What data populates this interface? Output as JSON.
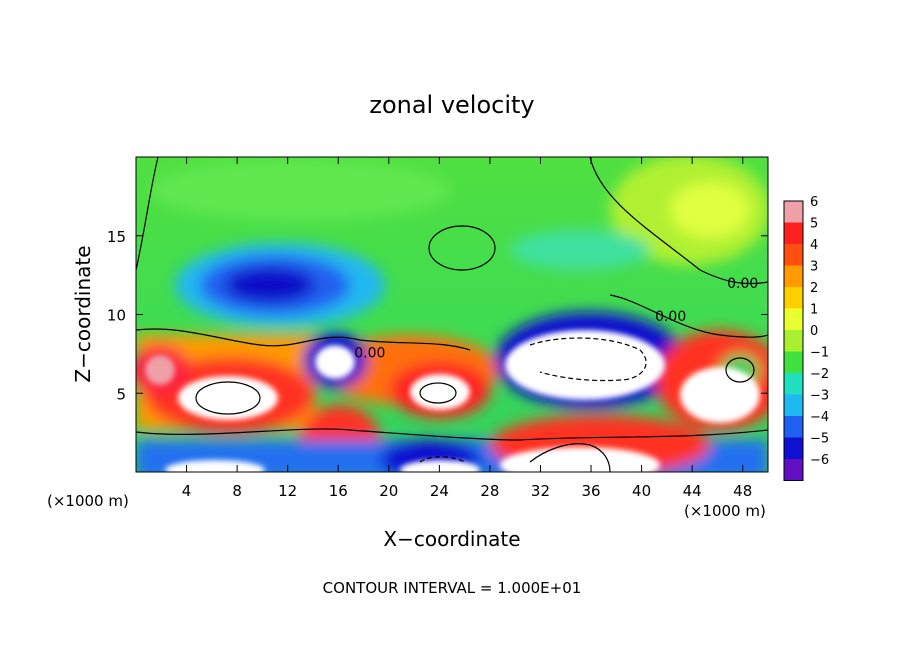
{
  "chart_data": {
    "type": "heatmap",
    "title": "zonal velocity",
    "xlabel": "X−coordinate",
    "ylabel": "Z−coordinate",
    "x_unit_left": "(×1000 m)",
    "x_unit_right": "(×1000 m)",
    "xlim": [
      0,
      50
    ],
    "ylim": [
      0,
      20
    ],
    "x_ticks": [
      4,
      8,
      12,
      16,
      20,
      24,
      28,
      32,
      36,
      40,
      44,
      48
    ],
    "y_ticks": [
      5,
      10,
      15
    ],
    "colorbar": {
      "ticks": [
        6,
        5,
        4,
        3,
        2,
        1,
        0,
        -1,
        -2,
        -3,
        -4,
        -5,
        -6
      ],
      "colors": [
        "#f0a0a8",
        "#ff2020",
        "#ff5010",
        "#ff9a00",
        "#ffd000",
        "#e8ff30",
        "#a8f030",
        "#40e040",
        "#20e0c0",
        "#20b8f0",
        "#2060f0",
        "#1010d0",
        "#6010c0"
      ]
    },
    "contour_labels": [
      {
        "text": "0.00",
        "x": 18.5,
        "z": 7.6
      },
      {
        "text": "0.00",
        "x": 42.3,
        "z": 9.9
      },
      {
        "text": "0.00",
        "x": 48.0,
        "z": 12.0
      }
    ],
    "footer": "CONTOUR INTERVAL = 1.000E+01"
  }
}
